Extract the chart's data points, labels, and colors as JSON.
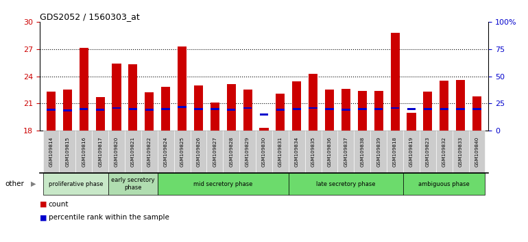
{
  "title": "GDS2052 / 1560303_at",
  "samples": [
    "GSM109814",
    "GSM109815",
    "GSM109816",
    "GSM109817",
    "GSM109820",
    "GSM109821",
    "GSM109822",
    "GSM109824",
    "GSM109825",
    "GSM109826",
    "GSM109827",
    "GSM109828",
    "GSM109829",
    "GSM109830",
    "GSM109831",
    "GSM109834",
    "GSM109835",
    "GSM109836",
    "GSM109837",
    "GSM109838",
    "GSM109839",
    "GSM109818",
    "GSM109819",
    "GSM109823",
    "GSM109832",
    "GSM109833",
    "GSM109840"
  ],
  "count_values": [
    22.3,
    22.5,
    27.1,
    21.7,
    25.4,
    25.3,
    22.2,
    22.8,
    27.3,
    23.0,
    21.1,
    23.1,
    22.5,
    18.3,
    22.1,
    23.4,
    24.3,
    22.5,
    22.6,
    22.4,
    22.4,
    28.8,
    20.0,
    22.3,
    23.5,
    23.6,
    21.8
  ],
  "percentile_values": [
    20.3,
    20.2,
    20.4,
    20.3,
    20.5,
    20.4,
    20.3,
    20.4,
    20.6,
    20.4,
    20.4,
    20.3,
    20.5,
    19.8,
    20.3,
    20.4,
    20.5,
    20.4,
    20.3,
    20.4,
    20.4,
    20.5,
    20.4,
    20.4,
    20.4,
    20.4,
    20.4
  ],
  "ylim": [
    18,
    30
  ],
  "yticks": [
    18,
    21,
    24,
    27,
    30
  ],
  "right_yticks": [
    0,
    25,
    50,
    75,
    100
  ],
  "right_ylabels": [
    "0",
    "25",
    "50",
    "75",
    "100%"
  ],
  "phases": [
    {
      "label": "proliferative phase",
      "start": 0,
      "end": 3,
      "color": "#c8e8c8"
    },
    {
      "label": "early secretory\nphase",
      "start": 4,
      "end": 6,
      "color": "#b0ddb0"
    },
    {
      "label": "mid secretory phase",
      "start": 7,
      "end": 14,
      "color": "#6cdb6c"
    },
    {
      "label": "late secretory phase",
      "start": 15,
      "end": 21,
      "color": "#6cdb6c"
    },
    {
      "label": "ambiguous phase",
      "start": 22,
      "end": 26,
      "color": "#6cdb6c"
    }
  ],
  "bar_color": "#cc0000",
  "percentile_color": "#0000cc",
  "bar_width": 0.55,
  "title_fontsize": 9,
  "ytick_color_left": "#cc0000",
  "ytick_color_right": "#0000cc"
}
